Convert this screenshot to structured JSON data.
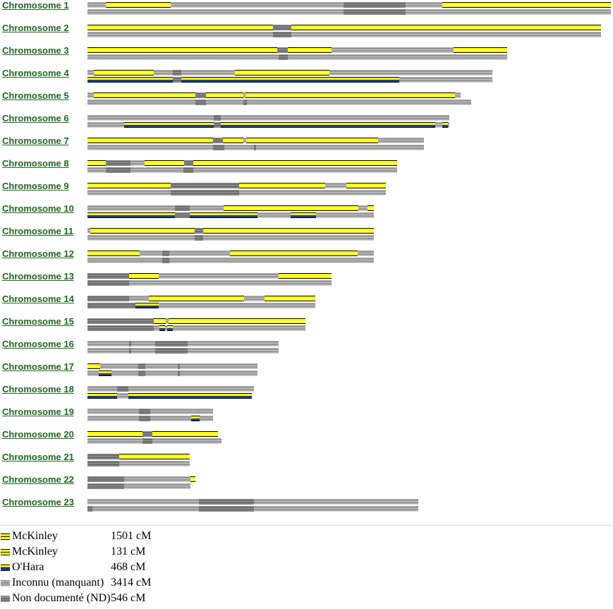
{
  "colors": {
    "mckinley_yellow": "#ffff00",
    "ohara_navy": "#1f3c94",
    "segment_border": "#000000",
    "unknown_gray": "#9a9a9a",
    "nd_dark_gray": "#6e6e6e",
    "label_green": "#226622",
    "separator_gray": "#d9d9d9"
  },
  "chart_data": {
    "type": "bar",
    "orientation": "horizontal-stacked",
    "description": "Chromosome map: 23 chromosomes, two copies each; colored segments show DNA matches; x scale in pixels from bar start (124px from page left)",
    "legend_position": "bottom-left",
    "legend": [
      {
        "name": "McKinley",
        "value": "1501 cM",
        "style": "mckinley"
      },
      {
        "name": "McKinley",
        "value": "131 cM",
        "style": "mckinley"
      },
      {
        "name": "O'Hara",
        "value": "468 cM",
        "style": "ohara"
      },
      {
        "name": "Inconnu (manquant)",
        "value": "3414 cM",
        "style": "unknown"
      },
      {
        "name": "Non documenté (ND)",
        "value": "546 cM",
        "style": "nd"
      }
    ],
    "chromosomes": [
      {
        "label": "Chromosome 1",
        "bars": [
          {
            "len": 742,
            "segs": [
              [
                "mckinley",
                26,
                118
              ],
              [
                "nd",
                363,
                451
              ],
              [
                "mckinley",
                503,
                742
              ]
            ]
          },
          {
            "len": 742,
            "segs": [
              [
                "nd",
                363,
                451
              ]
            ]
          }
        ]
      },
      {
        "label": "Chromosome 2",
        "bars": [
          {
            "len": 728,
            "segs": [
              [
                "mckinley",
                0,
                263
              ],
              [
                "nd",
                263,
                289
              ],
              [
                "mckinley",
                289,
                728
              ]
            ]
          },
          {
            "len": 728,
            "segs": [
              [
                "nd",
                263,
                289
              ]
            ]
          }
        ]
      },
      {
        "label": "Chromosome 3",
        "bars": [
          {
            "len": 595,
            "segs": [
              [
                "mckinley",
                0,
                269
              ],
              [
                "nd",
                269,
                284
              ],
              [
                "mckinley",
                284,
                346
              ],
              [
                "mckinley",
                519,
                595
              ]
            ]
          },
          {
            "len": 595,
            "segs": [
              [
                "nd",
                271,
                284
              ]
            ]
          }
        ]
      },
      {
        "label": "Chromosome 4",
        "bars": [
          {
            "len": 574,
            "segs": [
              [
                "mckinley",
                9,
                94
              ],
              [
                "nd",
                121,
                133
              ],
              [
                "mckinley",
                209,
                343
              ]
            ]
          },
          {
            "len": 574,
            "segs": [
              [
                "ohara",
                0,
                121
              ],
              [
                "nd",
                121,
                133
              ],
              [
                "ohara",
                133,
                442
              ]
            ]
          }
        ]
      },
      {
        "label": "Chromosome 5",
        "bars": [
          {
            "len": 529,
            "segs": [
              [
                "mckinley",
                9,
                153
              ],
              [
                "nd",
                153,
                168
              ],
              [
                "mckinley",
                168,
                221
              ],
              [
                "mckinley",
                224,
                521
              ]
            ]
          },
          {
            "len": 544,
            "segs": [
              [
                "nd",
                153,
                168
              ],
              [
                "nd",
                221,
                226
              ]
            ]
          }
        ]
      },
      {
        "label": "Chromosome 6",
        "bars": [
          {
            "len": 513,
            "segs": [
              [
                "nd",
                179,
                189
              ]
            ]
          },
          {
            "len": 513,
            "segs": [
              [
                "ohara",
                52,
                179
              ],
              [
                "nd",
                179,
                189
              ],
              [
                "ohara",
                189,
                493
              ],
              [
                "ohara",
                503,
                511
              ]
            ]
          }
        ]
      },
      {
        "label": "Chromosome 7",
        "bars": [
          {
            "len": 477,
            "segs": [
              [
                "mckinley",
                0,
                178
              ],
              [
                "nd",
                178,
                192
              ],
              [
                "mckinley",
                192,
                221
              ],
              [
                "mckinley",
                225,
                412
              ]
            ]
          },
          {
            "len": 477,
            "segs": [
              [
                "nd",
                178,
                194
              ],
              [
                "nd",
                236,
                239
              ]
            ]
          }
        ]
      },
      {
        "label": "Chromosome 8",
        "bars": [
          {
            "len": 439,
            "segs": [
              [
                "mckinley",
                0,
                26
              ],
              [
                "nd",
                26,
                61
              ],
              [
                "mckinley",
                81,
                137
              ],
              [
                "nd",
                137,
                150
              ],
              [
                "mckinley",
                150,
                439
              ]
            ]
          },
          {
            "len": 439,
            "segs": [
              [
                "nd",
                26,
                61
              ],
              [
                "nd",
                136,
                150
              ]
            ]
          }
        ]
      },
      {
        "label": "Chromosome 9",
        "bars": [
          {
            "len": 423,
            "segs": [
              [
                "mckinley",
                0,
                118
              ],
              [
                "nd",
                118,
                215
              ],
              [
                "mckinley",
                215,
                337
              ],
              [
                "mckinley",
                367,
                423
              ]
            ]
          },
          {
            "len": 423,
            "segs": [
              [
                "nd",
                118,
                215
              ]
            ]
          }
        ]
      },
      {
        "label": "Chromosome 10",
        "bars": [
          {
            "len": 406,
            "segs": [
              [
                "nd",
                124,
                145
              ],
              [
                "mckinley",
                193,
                384
              ],
              [
                "mckinley",
                397,
                406
              ]
            ]
          },
          {
            "len": 406,
            "segs": [
              [
                "ohara",
                0,
                124
              ],
              [
                "nd",
                124,
                145
              ],
              [
                "ohara",
                145,
                241
              ],
              [
                "ohara",
                288,
                324
              ]
            ]
          }
        ]
      },
      {
        "label": "Chromosome 11",
        "bars": [
          {
            "len": 406,
            "segs": [
              [
                "mckinley",
                4,
                152
              ],
              [
                "nd",
                152,
                164
              ],
              [
                "mckinley",
                164,
                406
              ]
            ]
          },
          {
            "len": 406,
            "segs": [
              [
                "nd",
                152,
                164
              ]
            ]
          }
        ]
      },
      {
        "label": "Chromosome 12",
        "bars": [
          {
            "len": 406,
            "segs": [
              [
                "mckinley",
                0,
                74
              ],
              [
                "nd",
                106,
                116
              ],
              [
                "mckinley",
                202,
                383
              ]
            ]
          },
          {
            "len": 406,
            "segs": [
              [
                "nd",
                106,
                116
              ]
            ]
          }
        ]
      },
      {
        "label": "Chromosome 13",
        "bars": [
          {
            "len": 346,
            "segs": [
              [
                "nd",
                0,
                59
              ],
              [
                "mckinley",
                59,
                101
              ],
              [
                "mckinley",
                271,
                346
              ]
            ]
          },
          {
            "len": 346,
            "segs": [
              [
                "nd",
                0,
                59
              ]
            ]
          }
        ]
      },
      {
        "label": "Chromosome 14",
        "bars": [
          {
            "len": 323,
            "segs": [
              [
                "nd",
                0,
                59
              ],
              [
                "mckinley",
                87,
                222
              ],
              [
                "mckinley",
                251,
                323
              ]
            ]
          },
          {
            "len": 323,
            "segs": [
              [
                "nd",
                0,
                68
              ],
              [
                "ohara",
                68,
                101
              ]
            ]
          }
        ]
      },
      {
        "label": "Chromosome 15",
        "bars": [
          {
            "len": 309,
            "segs": [
              [
                "nd",
                0,
                94
              ],
              [
                "mckinley",
                94,
                111
              ],
              [
                "mckinley",
                115,
                309
              ]
            ]
          },
          {
            "len": 309,
            "segs": [
              [
                "nd",
                0,
                94
              ],
              [
                "ohara",
                102,
                110
              ],
              [
                "ohara",
                113,
                121
              ]
            ]
          }
        ]
      },
      {
        "label": "Chromosome 16",
        "bars": [
          {
            "len": 271,
            "segs": [
              [
                "nd",
                59,
                62
              ],
              [
                "nd",
                96,
                142
              ]
            ]
          },
          {
            "len": 271,
            "segs": [
              [
                "nd",
                59,
                62
              ],
              [
                "nd",
                96,
                142
              ]
            ]
          }
        ]
      },
      {
        "label": "Chromosome 17",
        "bars": [
          {
            "len": 241,
            "segs": [
              [
                "mckinley",
                0,
                18
              ],
              [
                "nd",
                72,
                82
              ],
              [
                "nd",
                128,
                131
              ]
            ]
          },
          {
            "len": 241,
            "segs": [
              [
                "ohara",
                16,
                34
              ],
              [
                "nd",
                72,
                82
              ],
              [
                "nd",
                128,
                131
              ]
            ]
          }
        ]
      },
      {
        "label": "Chromosome 18",
        "bars": [
          {
            "len": 236,
            "segs": [
              [
                "nd",
                42,
                58
              ]
            ]
          },
          {
            "len": 233,
            "segs": [
              [
                "ohara",
                0,
                42
              ],
              [
                "ohara",
                58,
                233
              ]
            ]
          }
        ]
      },
      {
        "label": "Chromosome 19",
        "bars": [
          {
            "len": 178,
            "segs": [
              [
                "nd",
                73,
                89
              ]
            ]
          },
          {
            "len": 178,
            "segs": [
              [
                "nd",
                73,
                89
              ],
              [
                "ohara",
                147,
                159
              ]
            ]
          }
        ]
      },
      {
        "label": "Chromosome 20",
        "bars": [
          {
            "len": 185,
            "segs": [
              [
                "mckinley",
                0,
                78
              ],
              [
                "nd",
                78,
                92
              ],
              [
                "mckinley",
                92,
                185
              ]
            ]
          },
          {
            "len": 190,
            "segs": [
              [
                "nd",
                78,
                92
              ]
            ]
          }
        ]
      },
      {
        "label": "Chromosome 21",
        "bars": [
          {
            "len": 145,
            "segs": [
              [
                "nd",
                0,
                45
              ],
              [
                "mckinley",
                45,
                145
              ]
            ]
          },
          {
            "len": 145,
            "segs": [
              [
                "nd",
                0,
                45
              ]
            ]
          }
        ]
      },
      {
        "label": "Chromosome 22",
        "bars": [
          {
            "len": 153,
            "segs": [
              [
                "nd",
                0,
                52
              ],
              [
                "mckinley",
                146,
                153
              ]
            ]
          },
          {
            "len": 146,
            "segs": [
              [
                "nd",
                0,
                52
              ]
            ]
          }
        ]
      },
      {
        "label": "Chromosome 23",
        "bars": [
          {
            "len": 469,
            "segs": [
              [
                "nd",
                158,
                236
              ]
            ]
          },
          {
            "len": 469,
            "segs": [
              [
                "nd",
                0,
                7
              ],
              [
                "nd",
                158,
                236
              ]
            ]
          }
        ]
      }
    ]
  }
}
